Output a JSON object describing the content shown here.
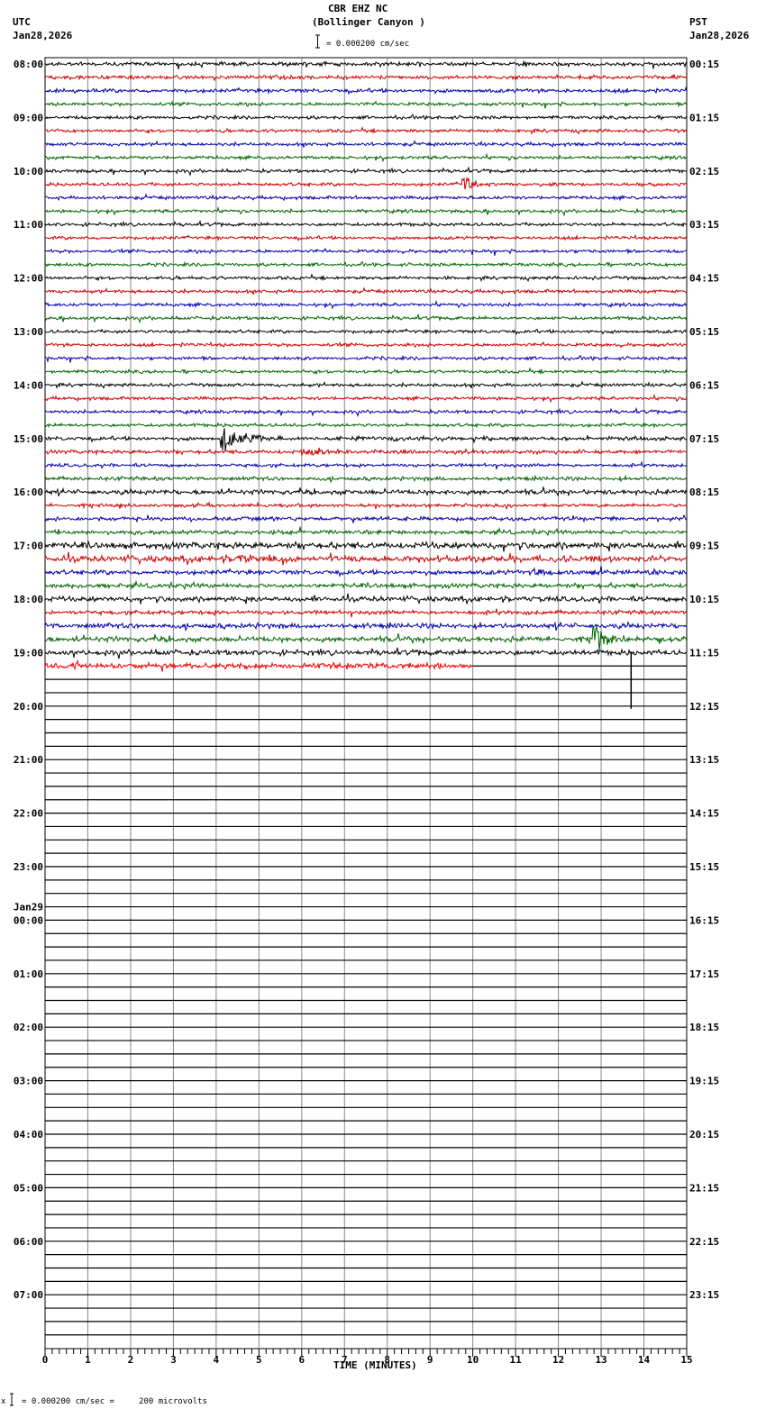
{
  "header": {
    "station": "CBR EHZ NC",
    "location": "(Bollinger Canyon )",
    "scale_text": "= 0.000200 cm/sec",
    "left_tz": "UTC",
    "left_date": "Jan28,2026",
    "right_tz": "PST",
    "right_date": "Jan28,2026"
  },
  "footer": {
    "xlabel": "TIME (MINUTES)",
    "scale_note": "= 0.000200 cm/sec =     200 microvolts",
    "marker": "x"
  },
  "day_change_label": "Jan29",
  "chart_data": {
    "type": "line",
    "title": "CBR EHZ NC (Bollinger Canyon )",
    "xlabel": "TIME (MINUTES)",
    "ylabel": "",
    "xlim": [
      0,
      15
    ],
    "x_ticks": [
      0,
      1,
      2,
      3,
      4,
      5,
      6,
      7,
      8,
      9,
      10,
      11,
      12,
      13,
      14,
      15
    ],
    "rows_per_hour": 4,
    "total_rows": 96,
    "row_colors": [
      "#000000",
      "#cc0000",
      "#0000aa",
      "#006400"
    ],
    "left_labels_utc": [
      "08:00",
      "09:00",
      "10:00",
      "11:00",
      "12:00",
      "13:00",
      "14:00",
      "15:00",
      "16:00",
      "17:00",
      "18:00",
      "19:00",
      "20:00",
      "21:00",
      "22:00",
      "23:00",
      "00:00",
      "01:00",
      "02:00",
      "03:00",
      "04:00",
      "05:00",
      "06:00",
      "07:00"
    ],
    "right_labels_pst": [
      "00:15",
      "01:15",
      "02:15",
      "03:15",
      "04:15",
      "05:15",
      "06:15",
      "07:15",
      "08:15",
      "09:15",
      "10:15",
      "11:15",
      "12:15",
      "13:15",
      "14:15",
      "15:15",
      "16:15",
      "17:15",
      "18:15",
      "19:15",
      "20:15",
      "21:15",
      "22:15",
      "23:15"
    ],
    "data_rows": 46,
    "last_row_end_minute": 10.0,
    "noise_levels": [
      1.5,
      1.5,
      1.5,
      1.3,
      1.3,
      1.3,
      1.3,
      1.3,
      1.3,
      1.3,
      1.3,
      1.3,
      1.3,
      1.3,
      1.3,
      1.3,
      1.3,
      1.3,
      1.3,
      1.3,
      1.3,
      1.3,
      1.3,
      1.3,
      1.3,
      1.3,
      1.3,
      1.3,
      1.5,
      1.5,
      1.3,
      1.5,
      1.8,
      1.3,
      1.6,
      1.6,
      2.5,
      2.5,
      1.8,
      1.8,
      2,
      1.6,
      2,
      2,
      2,
      2.2
    ],
    "events": [
      {
        "row": 9,
        "minute": 9.75,
        "amp": 10,
        "decay": 0.3,
        "label": "local spike"
      },
      {
        "row": 28,
        "minute": 4.1,
        "amp": 18,
        "decay": 0.5,
        "label": "earthquake"
      },
      {
        "row": 29,
        "minute": 6.0,
        "amp": 4,
        "decay": 1.0,
        "label": "coda"
      },
      {
        "row": 28,
        "minute": 8.0,
        "amp": 3,
        "decay": 1.2,
        "label": "coda"
      },
      {
        "row": 37,
        "minute": 4.5,
        "amp": 5,
        "decay": 0.3,
        "label": "burst"
      },
      {
        "row": 38,
        "minute": 11.4,
        "amp": 4,
        "decay": 0.7,
        "label": "burst"
      },
      {
        "row": 43,
        "minute": 12.8,
        "amp": 18,
        "decay": 0.3,
        "label": "spike"
      },
      {
        "row": 45,
        "minute": 0.65,
        "amp": 7,
        "decay": 0.1,
        "label": "spike"
      }
    ],
    "glitches": [
      {
        "row": 44,
        "minute": 13.7,
        "y_end_row": 48.2,
        "color": "#000000"
      }
    ]
  }
}
